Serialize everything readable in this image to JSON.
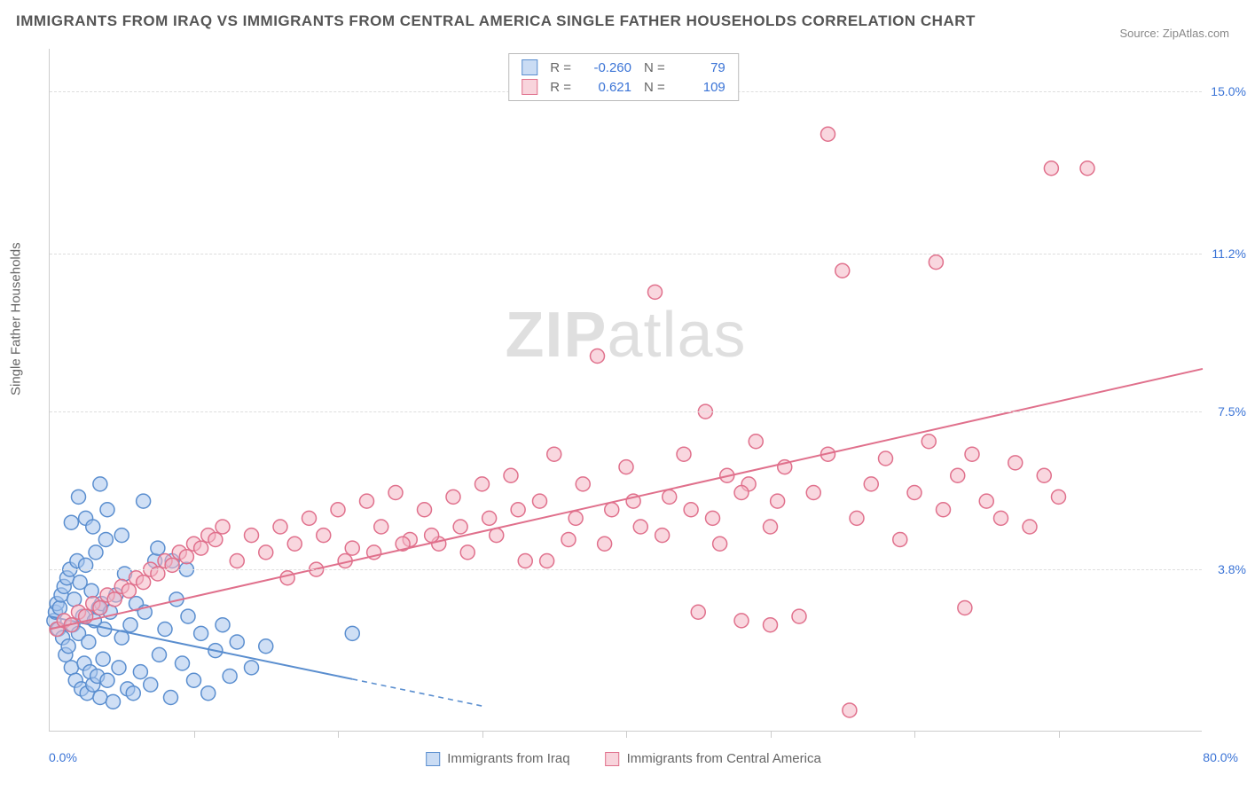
{
  "title": "IMMIGRANTS FROM IRAQ VS IMMIGRANTS FROM CENTRAL AMERICA SINGLE FATHER HOUSEHOLDS CORRELATION CHART",
  "source": "Source: ZipAtlas.com",
  "watermark_zip": "ZIP",
  "watermark_rest": "atlas",
  "yaxis_title": "Single Father Households",
  "chart": {
    "type": "scatter_with_regression",
    "xlim": [
      0,
      80
    ],
    "ylim": [
      0,
      16
    ],
    "x_ticks": [
      10,
      20,
      30,
      40,
      50,
      60,
      70
    ],
    "y_gridlines": [
      3.8,
      7.5,
      11.2,
      15.0
    ],
    "y_labels": [
      "3.8%",
      "7.5%",
      "11.2%",
      "15.0%"
    ],
    "x_min_label": "0.0%",
    "x_max_label": "80.0%",
    "background_color": "#ffffff",
    "grid_color": "#dddddd",
    "axis_color": "#cccccc",
    "value_text_color": "#3b74d6",
    "marker_radius": 8,
    "marker_stroke_width": 1.5,
    "line_width": 2
  },
  "series": [
    {
      "name": "Immigrants from Iraq",
      "color_fill": "#a7c5ed",
      "color_stroke": "#5a8ecf",
      "fill_opacity": 0.55,
      "stats": {
        "R": "-0.260",
        "N": "79"
      },
      "regression": {
        "x1": 0,
        "y1": 2.7,
        "x2": 30,
        "y2": 0.6,
        "solid_until_x": 21
      },
      "points": [
        [
          0.3,
          2.6
        ],
        [
          0.4,
          2.8
        ],
        [
          0.5,
          3.0
        ],
        [
          0.6,
          2.4
        ],
        [
          0.7,
          2.9
        ],
        [
          0.8,
          3.2
        ],
        [
          0.9,
          2.2
        ],
        [
          1.0,
          3.4
        ],
        [
          1.1,
          1.8
        ],
        [
          1.2,
          3.6
        ],
        [
          1.3,
          2.0
        ],
        [
          1.4,
          3.8
        ],
        [
          1.5,
          1.5
        ],
        [
          1.6,
          2.5
        ],
        [
          1.7,
          3.1
        ],
        [
          1.8,
          1.2
        ],
        [
          1.9,
          4.0
        ],
        [
          2.0,
          2.3
        ],
        [
          2.1,
          3.5
        ],
        [
          2.2,
          1.0
        ],
        [
          2.3,
          2.7
        ],
        [
          2.4,
          1.6
        ],
        [
          2.5,
          3.9
        ],
        [
          2.6,
          0.9
        ],
        [
          2.7,
          2.1
        ],
        [
          2.8,
          1.4
        ],
        [
          2.9,
          3.3
        ],
        [
          3.0,
          1.1
        ],
        [
          3.1,
          2.6
        ],
        [
          3.2,
          4.2
        ],
        [
          3.3,
          1.3
        ],
        [
          3.4,
          2.9
        ],
        [
          3.5,
          0.8
        ],
        [
          3.6,
          3.0
        ],
        [
          3.7,
          1.7
        ],
        [
          3.8,
          2.4
        ],
        [
          3.9,
          4.5
        ],
        [
          4.0,
          1.2
        ],
        [
          4.2,
          2.8
        ],
        [
          4.4,
          0.7
        ],
        [
          4.6,
          3.2
        ],
        [
          4.8,
          1.5
        ],
        [
          5.0,
          2.2
        ],
        [
          5.2,
          3.7
        ],
        [
          5.4,
          1.0
        ],
        [
          5.6,
          2.5
        ],
        [
          5.8,
          0.9
        ],
        [
          6.0,
          3.0
        ],
        [
          6.3,
          1.4
        ],
        [
          6.6,
          2.8
        ],
        [
          7.0,
          1.1
        ],
        [
          7.3,
          4.0
        ],
        [
          7.6,
          1.8
        ],
        [
          8.0,
          2.4
        ],
        [
          8.4,
          0.8
        ],
        [
          8.8,
          3.1
        ],
        [
          9.2,
          1.6
        ],
        [
          9.6,
          2.7
        ],
        [
          10.0,
          1.2
        ],
        [
          10.5,
          2.3
        ],
        [
          11.0,
          0.9
        ],
        [
          11.5,
          1.9
        ],
        [
          12.0,
          2.5
        ],
        [
          12.5,
          1.3
        ],
        [
          13.0,
          2.1
        ],
        [
          14.0,
          1.5
        ],
        [
          15.0,
          2.0
        ],
        [
          21.0,
          2.3
        ],
        [
          2.0,
          5.5
        ],
        [
          2.5,
          5.0
        ],
        [
          3.0,
          4.8
        ],
        [
          4.0,
          5.2
        ],
        [
          5.0,
          4.6
        ],
        [
          6.5,
          5.4
        ],
        [
          3.5,
          5.8
        ],
        [
          1.5,
          4.9
        ],
        [
          7.5,
          4.3
        ],
        [
          8.5,
          4.0
        ],
        [
          9.5,
          3.8
        ]
      ]
    },
    {
      "name": "Immigrants from Central America",
      "color_fill": "#f4b7c4",
      "color_stroke": "#e0708c",
      "fill_opacity": 0.55,
      "stats": {
        "R": "0.621",
        "N": "109"
      },
      "regression": {
        "x1": 0,
        "y1": 2.4,
        "x2": 80,
        "y2": 8.5,
        "solid_until_x": 80
      },
      "points": [
        [
          0.5,
          2.4
        ],
        [
          1.0,
          2.6
        ],
        [
          1.5,
          2.5
        ],
        [
          2.0,
          2.8
        ],
        [
          2.5,
          2.7
        ],
        [
          3.0,
          3.0
        ],
        [
          3.5,
          2.9
        ],
        [
          4.0,
          3.2
        ],
        [
          4.5,
          3.1
        ],
        [
          5.0,
          3.4
        ],
        [
          5.5,
          3.3
        ],
        [
          6.0,
          3.6
        ],
        [
          6.5,
          3.5
        ],
        [
          7.0,
          3.8
        ],
        [
          7.5,
          3.7
        ],
        [
          8.0,
          4.0
        ],
        [
          8.5,
          3.9
        ],
        [
          9.0,
          4.2
        ],
        [
          9.5,
          4.1
        ],
        [
          10.0,
          4.4
        ],
        [
          10.5,
          4.3
        ],
        [
          11.0,
          4.6
        ],
        [
          11.5,
          4.5
        ],
        [
          12.0,
          4.8
        ],
        [
          13.0,
          4.0
        ],
        [
          14.0,
          4.6
        ],
        [
          15.0,
          4.2
        ],
        [
          16.0,
          4.8
        ],
        [
          17.0,
          4.4
        ],
        [
          18.0,
          5.0
        ],
        [
          19.0,
          4.6
        ],
        [
          20.0,
          5.2
        ],
        [
          21.0,
          4.3
        ],
        [
          22.0,
          5.4
        ],
        [
          23.0,
          4.8
        ],
        [
          24.0,
          5.6
        ],
        [
          25.0,
          4.5
        ],
        [
          26.0,
          5.2
        ],
        [
          27.0,
          4.4
        ],
        [
          28.0,
          5.5
        ],
        [
          29.0,
          4.2
        ],
        [
          30.0,
          5.8
        ],
        [
          31.0,
          4.6
        ],
        [
          32.0,
          6.0
        ],
        [
          33.0,
          4.0
        ],
        [
          34.0,
          5.4
        ],
        [
          35.0,
          6.5
        ],
        [
          36.0,
          4.5
        ],
        [
          37.0,
          5.8
        ],
        [
          38.0,
          8.8
        ],
        [
          39.0,
          5.2
        ],
        [
          40.0,
          6.2
        ],
        [
          41.0,
          4.8
        ],
        [
          42.0,
          10.3
        ],
        [
          43.0,
          5.5
        ],
        [
          44.0,
          6.5
        ],
        [
          45.0,
          2.8
        ],
        [
          45.5,
          7.5
        ],
        [
          46.0,
          5.0
        ],
        [
          47.0,
          6.0
        ],
        [
          48.0,
          2.6
        ],
        [
          48.5,
          5.8
        ],
        [
          49.0,
          6.8
        ],
        [
          50.0,
          2.5
        ],
        [
          50.5,
          5.4
        ],
        [
          51.0,
          6.2
        ],
        [
          52.0,
          2.7
        ],
        [
          53.0,
          5.6
        ],
        [
          54.0,
          6.5
        ],
        [
          55.0,
          10.8
        ],
        [
          55.5,
          0.5
        ],
        [
          56.0,
          5.0
        ],
        [
          57.0,
          5.8
        ],
        [
          58.0,
          6.4
        ],
        [
          59.0,
          4.5
        ],
        [
          60.0,
          5.6
        ],
        [
          61.0,
          6.8
        ],
        [
          62.0,
          5.2
        ],
        [
          63.0,
          6.0
        ],
        [
          63.5,
          2.9
        ],
        [
          64.0,
          6.5
        ],
        [
          65.0,
          5.4
        ],
        [
          66.0,
          5.0
        ],
        [
          67.0,
          6.3
        ],
        [
          68.0,
          4.8
        ],
        [
          69.0,
          6.0
        ],
        [
          70.0,
          5.5
        ],
        [
          54.0,
          14.0
        ],
        [
          61.5,
          11.0
        ],
        [
          69.5,
          13.2
        ],
        [
          72.0,
          13.2
        ],
        [
          16.5,
          3.6
        ],
        [
          18.5,
          3.8
        ],
        [
          20.5,
          4.0
        ],
        [
          22.5,
          4.2
        ],
        [
          24.5,
          4.4
        ],
        [
          26.5,
          4.6
        ],
        [
          28.5,
          4.8
        ],
        [
          30.5,
          5.0
        ],
        [
          32.5,
          5.2
        ],
        [
          34.5,
          4.0
        ],
        [
          36.5,
          5.0
        ],
        [
          38.5,
          4.4
        ],
        [
          40.5,
          5.4
        ],
        [
          42.5,
          4.6
        ],
        [
          44.5,
          5.2
        ],
        [
          46.5,
          4.4
        ],
        [
          48.0,
          5.6
        ],
        [
          50.0,
          4.8
        ]
      ]
    }
  ],
  "swatch_opacity": 0.6
}
